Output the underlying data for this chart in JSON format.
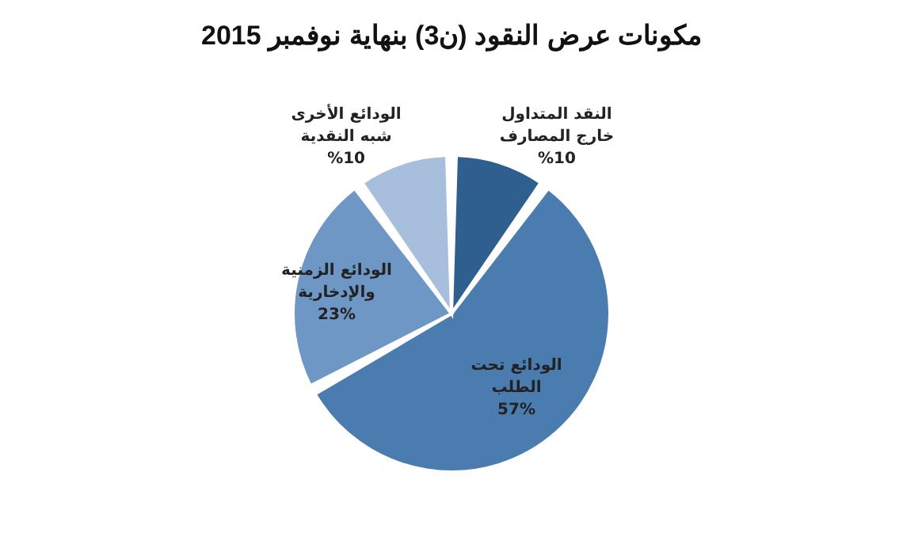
{
  "chart_data": {
    "type": "pie",
    "title": "مكونات عرض النقود (ن3) بنهاية نوفمبر 2015",
    "categories": [
      "النقد المتداول خارج المصارف",
      "الودائع تحت الطلب",
      "الودائع الزمنية والإدخارية",
      "الودائع الأخرى شبه النقدية"
    ],
    "values": [
      10,
      57,
      23,
      10
    ],
    "value_labels": [
      "%10",
      "57%",
      "23%",
      "%10"
    ],
    "colors": [
      "#2e5f8f",
      "#4a7cb0",
      "#6e97c6",
      "#a7bfdc"
    ],
    "legend": false
  }
}
